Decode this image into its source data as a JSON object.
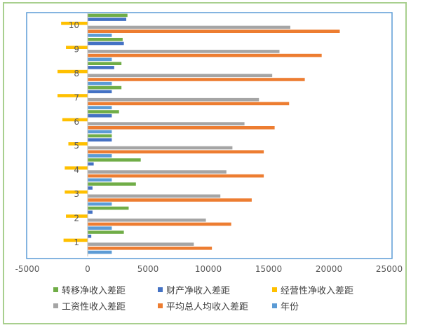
{
  "chart_data": {
    "type": "bar",
    "orientation": "horizontal",
    "categories": [
      "1",
      "2",
      "3",
      "4",
      "5",
      "6",
      "7",
      "8",
      "9",
      "10"
    ],
    "xlim": [
      -5000,
      25000
    ],
    "xticks": [
      -5000,
      0,
      5000,
      10000,
      15000,
      20000,
      25000
    ],
    "grid": false,
    "legend_position": "bottom",
    "series": [
      {
        "name": "年份",
        "color": "#5b9bd5",
        "values": [
          2000,
          2000,
          2000,
          2000,
          2000,
          2000,
          2000,
          2000,
          2000,
          2000
        ]
      },
      {
        "name": "平均总人均收入差距",
        "color": "#ed7d31",
        "values": [
          10300,
          11900,
          13600,
          14600,
          14600,
          15500,
          16700,
          18000,
          19400,
          20900
        ]
      },
      {
        "name": "工资性收入差距",
        "color": "#a5a5a5",
        "values": [
          8800,
          9800,
          11000,
          11500,
          12000,
          13000,
          14200,
          15300,
          15900,
          16800
        ]
      },
      {
        "name": "经营性净收入差距",
        "color": "#ffc000",
        "values": [
          -2000,
          -1800,
          -1900,
          -1900,
          -1600,
          -2100,
          -2500,
          -2500,
          -1800,
          -2200
        ]
      },
      {
        "name": "财产净收入差距",
        "color": "#4472c4",
        "values": [
          300,
          400,
          400,
          500,
          2000,
          2000,
          2000,
          2200,
          3000,
          3200
        ]
      },
      {
        "name": "转移净收入差距",
        "color": "#70ad47",
        "values": [
          3000,
          3400,
          4000,
          4400,
          2000,
          2600,
          2800,
          2800,
          2900,
          3300
        ]
      }
    ],
    "legend": [
      "转移净收入差距",
      "财产净收入差距",
      "经营性净收入差距",
      "工资性收入差距",
      "平均总人均收入差距",
      "年份"
    ]
  }
}
